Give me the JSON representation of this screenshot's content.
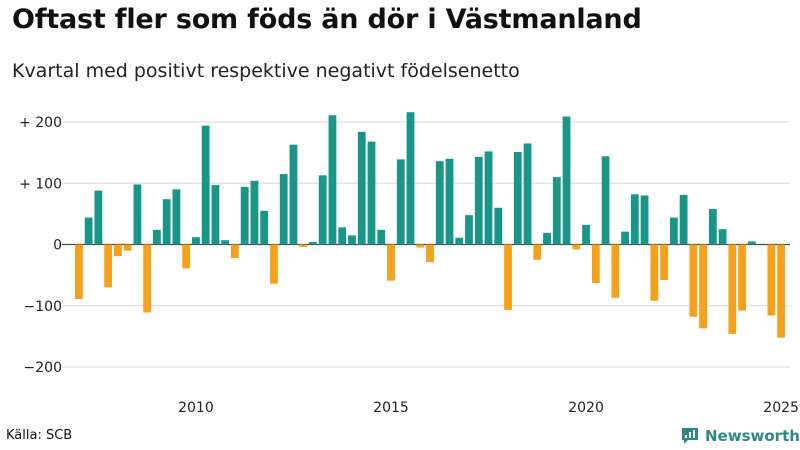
{
  "title": "Oftast fler som föds än dör i Västmanland",
  "subtitle": "Kvartal med positivt respektive negativt födelsenetto",
  "source": "Källa: SCB",
  "brand": {
    "name": "Newsworthy"
  },
  "colors": {
    "positive": "#1a9688",
    "negative": "#f5a11c",
    "grid": "#d8d8d8"
  },
  "chart_data": {
    "type": "bar",
    "title": "Oftast fler som föds än dör i Västmanland",
    "subtitle": "Kvartal med positivt respektive negativt födelsenetto",
    "xlabel": "",
    "ylabel": "",
    "ylim": [
      -200,
      215
    ],
    "grid": true,
    "yticks": [
      {
        "value": 200,
        "label": "+ 200"
      },
      {
        "value": 100,
        "label": "+ 100"
      },
      {
        "value": 0,
        "label": "0"
      },
      {
        "value": -100,
        "label": "−100"
      },
      {
        "value": -200,
        "label": "−200"
      }
    ],
    "xticks": [
      {
        "index": 12,
        "label": "2010"
      },
      {
        "index": 32,
        "label": "2015"
      },
      {
        "index": 52,
        "label": "2020"
      },
      {
        "index": 72,
        "label": "2025"
      }
    ],
    "categories": [
      "2007 Q1",
      "2007 Q2",
      "2007 Q3",
      "2007 Q4",
      "2008 Q1",
      "2008 Q2",
      "2008 Q3",
      "2008 Q4",
      "2009 Q1",
      "2009 Q2",
      "2009 Q3",
      "2009 Q4",
      "2010 Q1",
      "2010 Q2",
      "2010 Q3",
      "2010 Q4",
      "2011 Q1",
      "2011 Q2",
      "2011 Q3",
      "2011 Q4",
      "2012 Q1",
      "2012 Q2",
      "2012 Q3",
      "2012 Q4",
      "2013 Q1",
      "2013 Q2",
      "2013 Q3",
      "2013 Q4",
      "2014 Q1",
      "2014 Q2",
      "2014 Q3",
      "2014 Q4",
      "2015 Q1",
      "2015 Q2",
      "2015 Q3",
      "2015 Q4",
      "2016 Q1",
      "2016 Q2",
      "2016 Q3",
      "2016 Q4",
      "2017 Q1",
      "2017 Q2",
      "2017 Q3",
      "2017 Q4",
      "2018 Q1",
      "2018 Q2",
      "2018 Q3",
      "2018 Q4",
      "2019 Q1",
      "2019 Q2",
      "2019 Q3",
      "2019 Q4",
      "2020 Q1",
      "2020 Q2",
      "2020 Q3",
      "2020 Q4",
      "2021 Q1",
      "2021 Q2",
      "2021 Q3",
      "2021 Q4",
      "2022 Q1",
      "2022 Q2",
      "2022 Q3",
      "2022 Q4",
      "2023 Q1",
      "2023 Q2",
      "2023 Q3",
      "2023 Q4",
      "2024 Q1",
      "2024 Q2",
      "2024 Q3",
      "2024 Q4",
      "2025 Q1"
    ],
    "values": [
      -89,
      44,
      88,
      -70,
      -19,
      -10,
      98,
      -111,
      24,
      74,
      90,
      -39,
      12,
      194,
      97,
      7,
      -22,
      94,
      104,
      55,
      -64,
      115,
      163,
      -4,
      4,
      113,
      211,
      28,
      15,
      184,
      168,
      24,
      -59,
      139,
      216,
      -5,
      -29,
      136,
      140,
      11,
      48,
      143,
      152,
      60,
      -107,
      151,
      165,
      -25,
      19,
      110,
      209,
      -8,
      32,
      -63,
      144,
      -87,
      21,
      82,
      80,
      -92,
      -58,
      44,
      81,
      -118,
      -137,
      58,
      25,
      -146,
      -108,
      5,
      0,
      -116,
      -152
    ]
  }
}
